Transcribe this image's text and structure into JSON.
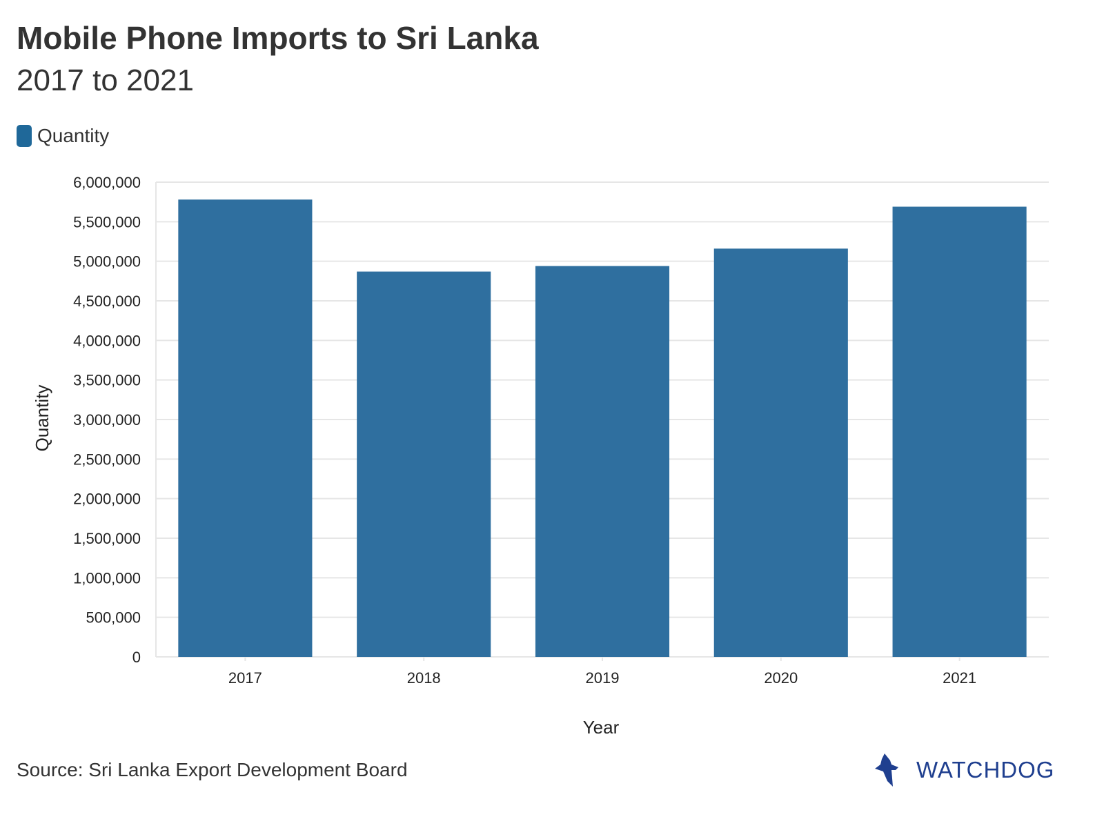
{
  "chart_data": {
    "type": "bar",
    "title": "Mobile Phone Imports to Sri Lanka",
    "subtitle": "2017 to 2021",
    "legend": {
      "label": "Quantity",
      "color": "#1f6899",
      "placement": "top-left"
    },
    "categories": [
      "2017",
      "2018",
      "2019",
      "2020",
      "2021"
    ],
    "series": [
      {
        "name": "Quantity",
        "values": [
          5780000,
          4870000,
          4940000,
          5160000,
          5690000
        ]
      }
    ],
    "xlabel": "Year",
    "ylabel": "Quantity",
    "ylim": [
      0,
      6000000
    ],
    "yticks": [
      0,
      500000,
      1000000,
      1500000,
      2000000,
      2500000,
      3000000,
      3500000,
      4000000,
      4500000,
      5000000,
      5500000,
      6000000
    ],
    "ytick_labels": [
      "0",
      "500,000",
      "1,000,000",
      "1,500,000",
      "2,000,000",
      "2,500,000",
      "3,000,000",
      "3,500,000",
      "4,000,000",
      "4,500,000",
      "5,000,000",
      "5,500,000",
      "6,000,000"
    ],
    "grid": true,
    "bar_color": "#2f6f9f"
  },
  "footer": {
    "source": "Source: Sri Lanka Export Development Board",
    "logo_text": "WATCHDOG",
    "logo_color": "#1f3f8f"
  }
}
